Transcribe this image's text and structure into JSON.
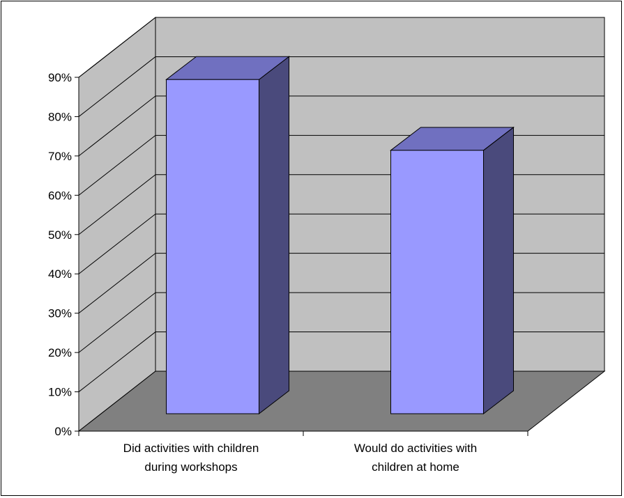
{
  "chart_data": {
    "type": "bar",
    "style": "3d-column",
    "categories": [
      [
        "Did activities with children",
        "during workshops"
      ],
      [
        "Would do activities with",
        "children at home"
      ]
    ],
    "values": [
      85,
      67
    ],
    "ylim": [
      0,
      90
    ],
    "ytick_step": 10,
    "ytick_labels": [
      "0%",
      "10%",
      "20%",
      "30%",
      "40%",
      "50%",
      "60%",
      "70%",
      "80%",
      "90%"
    ],
    "grid": true,
    "legend": "none",
    "title": "",
    "xlabel": "",
    "ylabel": "",
    "colors": {
      "bar_front": "#9999ff",
      "bar_top": "#7070c0",
      "bar_side": "#4a4a7c",
      "back_wall": "#c0c0c0",
      "side_wall": "#c0c0c0",
      "floor": "#808080",
      "gridline": "#000000"
    }
  }
}
